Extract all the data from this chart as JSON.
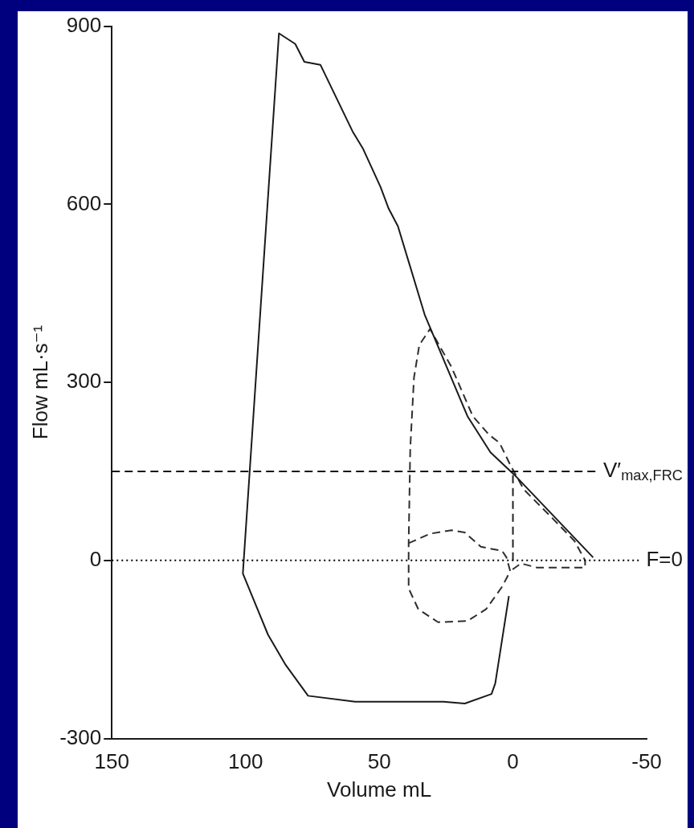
{
  "chart_data": {
    "type": "line",
    "xlabel": "Volume mL",
    "ylabel": "Flow mL·s⁻¹",
    "xlim": [
      150,
      -50
    ],
    "xticks": [
      150,
      100,
      50,
      0,
      -50
    ],
    "ylim": [
      -300,
      900
    ],
    "yticks": [
      -300,
      0,
      300,
      600,
      900
    ],
    "grid": false,
    "legend": false,
    "marker": "none",
    "series": [
      {
        "color": "#1a1a1a",
        "line_style": "solid",
        "x": [
          1.5,
          6.6,
          8,
          18,
          26,
          59,
          76.6,
          85,
          91.6,
          101,
          87.5,
          81.4,
          78,
          72,
          60,
          56,
          49.5,
          46.5,
          43,
          33,
          17,
          8.4,
          -0.6,
          -30
        ],
        "values": [
          -60,
          -207,
          -225,
          -241,
          -238,
          -238,
          -228,
          -176,
          -125,
          -22,
          888,
          870,
          840,
          835,
          723,
          693,
          629,
          593,
          563,
          414,
          243,
          182,
          144,
          5
        ]
      },
      {
        "color": "#2e2e2e",
        "line_style": "dashed",
        "x": [
          39,
          31,
          23,
          18,
          12,
          4,
          2.4,
          1,
          4,
          10,
          17,
          28,
          35.4,
          39,
          39,
          38.4,
          37,
          35,
          31,
          23,
          15,
          9,
          5,
          1,
          -4,
          -15,
          -23,
          -27,
          -27,
          -9,
          -3,
          1
        ],
        "values": [
          29,
          45,
          51,
          47,
          23,
          16,
          5,
          -18,
          -44,
          -82,
          -102,
          -104,
          -82,
          -47,
          29,
          188,
          308,
          363,
          390,
          326,
          243,
          212,
          198,
          161,
          120,
          70,
          33,
          0,
          -12,
          -12,
          -5,
          -18
        ]
      },
      {
        "color": "#222222",
        "line_style": "dashed",
        "x": [
          0,
          0
        ],
        "values": [
          0,
          150
        ]
      }
    ],
    "ref_lines": [
      {
        "axis": "y",
        "value": 150,
        "label": "V′$_{max,FRC}$",
        "line_style": "dashed",
        "color": "#111111"
      },
      {
        "axis": "y",
        "value": 0,
        "label": "F=0",
        "line_style": "dotted",
        "color": "#000000"
      }
    ]
  }
}
